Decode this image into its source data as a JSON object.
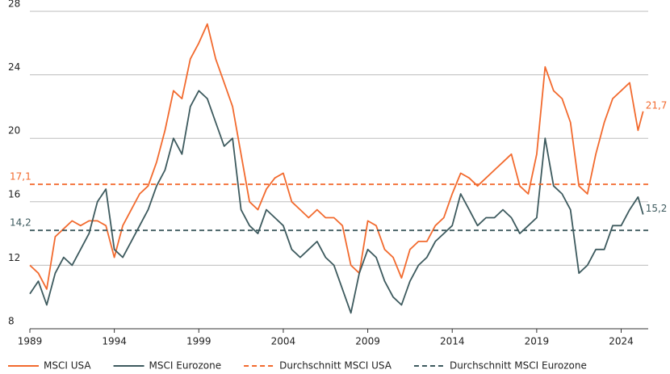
{
  "chart_data": {
    "type": "line",
    "x": [
      1989,
      1989.5,
      1990,
      1990.5,
      1991,
      1991.5,
      1992,
      1992.5,
      1993,
      1993.5,
      1994,
      1994.5,
      1995,
      1995.5,
      1996,
      1996.5,
      1997,
      1997.5,
      1998,
      1998.5,
      1999,
      1999.5,
      2000,
      2000.5,
      2001,
      2001.5,
      2002,
      2002.5,
      2003,
      2003.5,
      2004,
      2004.5,
      2005,
      2005.5,
      2006,
      2006.5,
      2007,
      2007.5,
      2008,
      2008.5,
      2009,
      2009.5,
      2010,
      2010.5,
      2011,
      2011.5,
      2012,
      2012.5,
      2013,
      2013.5,
      2014,
      2014.5,
      2015,
      2015.5,
      2016,
      2016.5,
      2017,
      2017.5,
      2018,
      2018.5,
      2019,
      2019.5,
      2020,
      2020.5,
      2021,
      2021.5,
      2022,
      2022.5,
      2023,
      2023.5,
      2024,
      2024.5,
      2025,
      2025.3
    ],
    "series": [
      {
        "name": "MSCI USA",
        "color": "#f26a2e",
        "end_label": "21,7",
        "values": [
          12,
          11.5,
          10.5,
          13.8,
          14.3,
          14.8,
          14.5,
          14.8,
          14.8,
          14.5,
          12.5,
          14.5,
          15.5,
          16.5,
          17,
          18.5,
          20.5,
          23,
          22.5,
          25,
          26,
          27.2,
          25,
          23.5,
          22,
          19,
          16,
          15.5,
          16.8,
          17.5,
          17.8,
          16,
          15.5,
          15,
          15.5,
          15,
          15,
          14.5,
          12,
          11.5,
          14.8,
          14.5,
          13,
          12.5,
          11.2,
          13,
          13.5,
          13.5,
          14.5,
          15,
          16.5,
          17.8,
          17.5,
          17,
          17.5,
          18,
          18.5,
          19,
          17,
          16.5,
          19,
          24.5,
          23,
          22.5,
          21,
          17,
          16.5,
          19,
          21,
          22.5,
          23,
          23.5,
          20.5,
          21.7
        ]
      },
      {
        "name": "MSCI Eurozone",
        "color": "#3d5a5e",
        "end_label": "15,2",
        "values": [
          10.2,
          11,
          9.5,
          11.5,
          12.5,
          12,
          13,
          14,
          16,
          16.8,
          13,
          12.5,
          13.5,
          14.5,
          15.5,
          17,
          18,
          20,
          19,
          22,
          23,
          22.5,
          21,
          19.5,
          20,
          15.5,
          14.5,
          14,
          15.5,
          15,
          14.5,
          13,
          12.5,
          13,
          13.5,
          12.5,
          12,
          10.5,
          9,
          11.5,
          13,
          12.5,
          11,
          10,
          9.5,
          11,
          12,
          12.5,
          13.5,
          14,
          14.5,
          16.5,
          15.5,
          14.5,
          15,
          15,
          15.5,
          15,
          14,
          14.5,
          15,
          20,
          17,
          16.5,
          15.5,
          11.5,
          12,
          13,
          13,
          14.5,
          14.5,
          15.5,
          16.3,
          15.2
        ]
      },
      {
        "name": "Durchschnitt MSCI USA",
        "color": "#f26a2e",
        "dashed": true,
        "value": 17.1,
        "value_label": "17,1"
      },
      {
        "name": "Durchschnitt MSCI Eurozone",
        "color": "#3d5a5e",
        "dashed": true,
        "value": 14.2,
        "value_label": "14,2"
      }
    ],
    "xlim": [
      1989,
      2025.6
    ],
    "xticks": [
      1989,
      1994,
      1999,
      2004,
      2009,
      2014,
      2019,
      2024
    ],
    "ylim": [
      8,
      28
    ],
    "yticks": [
      8,
      12,
      16,
      20,
      24,
      28
    ],
    "grid": true,
    "legend": "bottom"
  }
}
